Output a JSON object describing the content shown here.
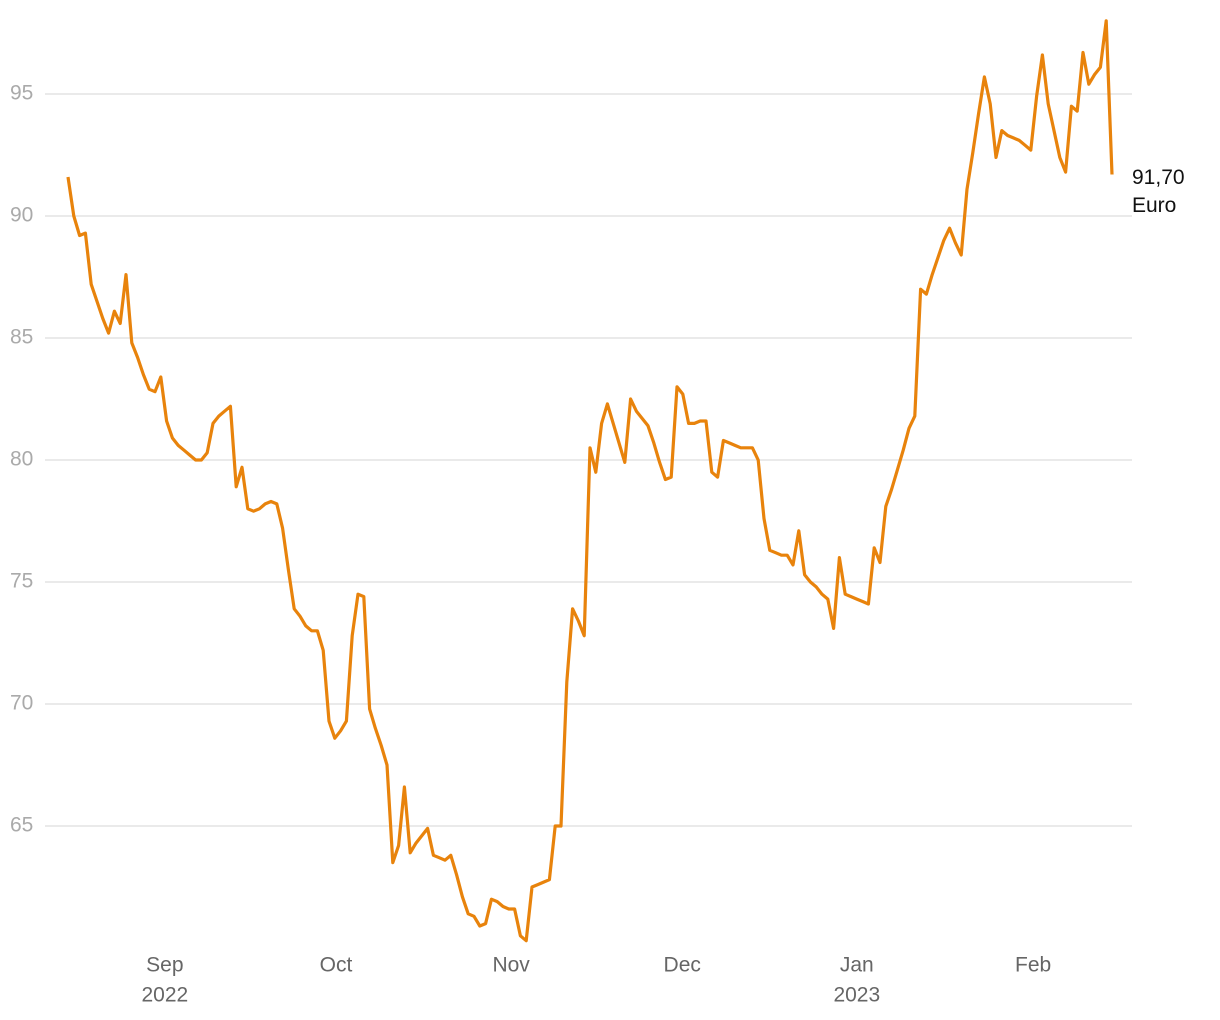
{
  "chart_data": {
    "type": "line",
    "color": "#e8830c",
    "ylim": [
      60,
      98
    ],
    "yticks": [
      65,
      70,
      75,
      80,
      85,
      90,
      95
    ],
    "grid": true,
    "xlim": [
      0,
      180
    ],
    "xticks": [
      {
        "value": 16.7,
        "label": "Sep"
      },
      {
        "value": 46.2,
        "label": "Oct"
      },
      {
        "value": 76.4,
        "label": "Nov"
      },
      {
        "value": 105.9,
        "label": "Dec"
      },
      {
        "value": 136,
        "label": "Jan"
      },
      {
        "value": 166.4,
        "label": "Feb"
      }
    ],
    "xtick_years": [
      {
        "value": 16.7,
        "label": "2022"
      },
      {
        "value": 136,
        "label": "2023"
      }
    ],
    "last_value_label": "91,70",
    "unit": "Euro",
    "values": [
      91.6,
      90.0,
      89.2,
      89.3,
      87.2,
      86.5,
      85.8,
      85.2,
      86.1,
      85.6,
      87.6,
      84.8,
      84.2,
      83.5,
      82.9,
      82.8,
      83.4,
      81.6,
      80.9,
      80.6,
      80.4,
      80.2,
      80.0,
      80.0,
      80.3,
      81.5,
      81.8,
      82.0,
      82.2,
      78.9,
      79.7,
      78.0,
      77.9,
      78.0,
      78.2,
      78.3,
      78.2,
      77.2,
      75.5,
      73.9,
      73.6,
      73.2,
      73.0,
      73.0,
      72.2,
      69.3,
      68.6,
      68.9,
      69.3,
      72.8,
      74.5,
      74.4,
      69.8,
      69.0,
      68.3,
      67.5,
      63.5,
      64.2,
      66.6,
      63.9,
      64.3,
      64.6,
      64.9,
      63.8,
      63.7,
      63.6,
      63.8,
      63.0,
      62.1,
      61.4,
      61.3,
      60.9,
      61.0,
      62.0,
      61.9,
      61.7,
      61.6,
      61.6,
      60.5,
      60.3,
      62.5,
      62.6,
      62.7,
      62.8,
      65.0,
      65.0,
      70.9,
      73.9,
      73.4,
      72.8,
      80.5,
      79.5,
      81.5,
      82.3,
      81.5,
      80.7,
      79.9,
      82.5,
      82.0,
      81.7,
      81.4,
      80.7,
      79.9,
      79.2,
      79.3,
      83.0,
      82.7,
      81.5,
      81.5,
      81.6,
      81.6,
      79.5,
      79.3,
      80.8,
      80.7,
      80.6,
      80.5,
      80.5,
      80.5,
      80.0,
      77.6,
      76.3,
      76.2,
      76.1,
      76.1,
      75.7,
      77.1,
      75.3,
      75.0,
      74.8,
      74.5,
      74.3,
      73.1,
      76.0,
      74.5,
      74.4,
      74.3,
      74.2,
      74.1,
      76.4,
      75.8,
      78.1,
      78.8,
      79.6,
      80.4,
      81.3,
      81.8,
      87.0,
      86.8,
      87.6,
      88.3,
      89.0,
      89.5,
      88.9,
      88.4,
      91.1,
      92.6,
      94.2,
      95.7,
      94.6,
      92.4,
      93.5,
      93.3,
      93.2,
      93.1,
      92.9,
      92.7,
      94.9,
      96.6,
      94.6,
      93.5,
      92.4,
      91.8,
      94.5,
      94.3,
      96.7,
      95.4,
      95.8,
      96.1,
      98.0,
      91.7
    ]
  }
}
